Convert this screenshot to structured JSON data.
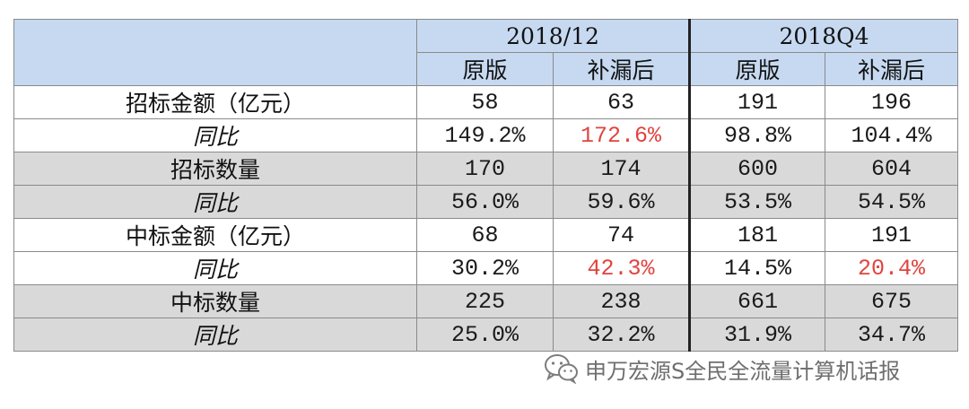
{
  "table": {
    "periods": [
      "2018/12",
      "2018Q4"
    ],
    "sub_headers": [
      "原版",
      "补漏后",
      "原版",
      "补漏后"
    ],
    "rows": [
      {
        "label": "招标金额（亿元）",
        "yoy": false,
        "values": [
          "58",
          "63",
          "191",
          "196"
        ],
        "red": [
          false,
          false,
          false,
          false
        ]
      },
      {
        "label": "同比",
        "yoy": true,
        "values": [
          "149.2%",
          "172.6%",
          "98.8%",
          "104.4%"
        ],
        "red": [
          false,
          true,
          false,
          false
        ]
      },
      {
        "label": "招标数量",
        "yoy": false,
        "values": [
          "170",
          "174",
          "600",
          "604"
        ],
        "red": [
          false,
          false,
          false,
          false
        ]
      },
      {
        "label": "同比",
        "yoy": true,
        "values": [
          "56.0%",
          "59.6%",
          "53.5%",
          "54.5%"
        ],
        "red": [
          false,
          false,
          false,
          false
        ]
      },
      {
        "label": "中标金额（亿元）",
        "yoy": false,
        "values": [
          "68",
          "74",
          "181",
          "191"
        ],
        "red": [
          false,
          false,
          false,
          false
        ]
      },
      {
        "label": "同比",
        "yoy": true,
        "values": [
          "30.2%",
          "42.3%",
          "14.5%",
          "20.4%"
        ],
        "red": [
          false,
          true,
          false,
          true
        ]
      },
      {
        "label": "中标数量",
        "yoy": false,
        "values": [
          "225",
          "238",
          "661",
          "675"
        ],
        "red": [
          false,
          false,
          false,
          false
        ]
      },
      {
        "label": "同比",
        "yoy": true,
        "values": [
          "25.0%",
          "32.2%",
          "31.9%",
          "34.7%"
        ],
        "red": [
          false,
          false,
          false,
          false
        ]
      }
    ]
  },
  "colors": {
    "header_bg": "#c6d9f1",
    "shaded_row": "#d9d9d9",
    "highlight_red": "#e0443e"
  },
  "watermark": {
    "icon": "wechat-icon",
    "text": "申万宏源S全民全流量计算机话报"
  }
}
